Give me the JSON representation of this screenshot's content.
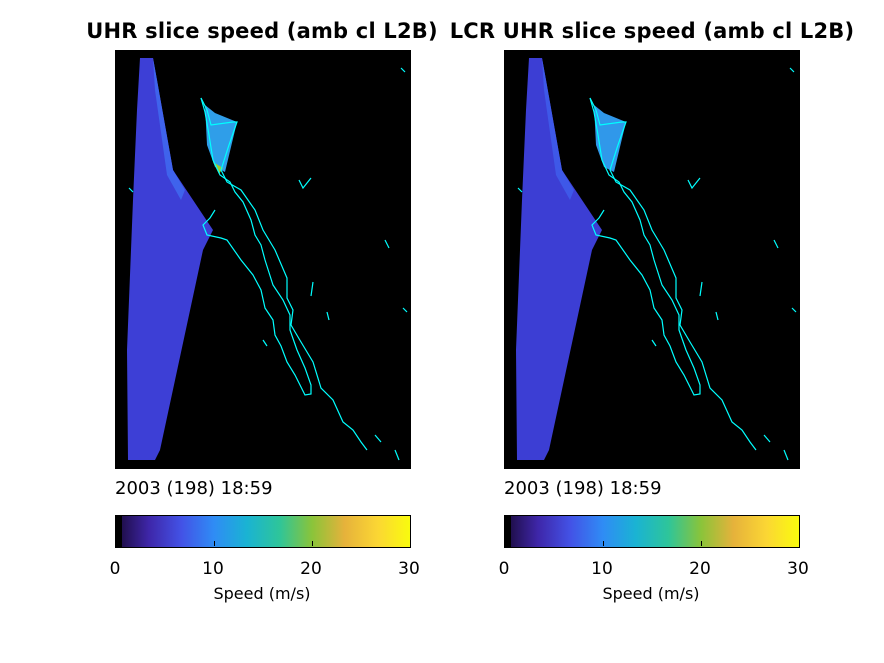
{
  "panels": [
    {
      "title": "UHR slice speed (amb cl L2B)",
      "timestamp": "2003 (198) 18:59",
      "colorbar_label": "Speed (m/s)",
      "ticks": [
        "0",
        "10",
        "20",
        "30"
      ]
    },
    {
      "title": "LCR UHR slice speed (amb cl L2B)",
      "timestamp": "2003 (198) 18:59",
      "colorbar_label": "Speed (m/s)",
      "ticks": [
        "0",
        "10",
        "20",
        "30"
      ]
    }
  ],
  "colors": {
    "background": "#000000",
    "coastline": "#00ffff",
    "swath": "#3d3fd6",
    "colormap": [
      "#1a0a3a",
      "#3e26a8",
      "#4352e6",
      "#2f8cf5",
      "#1ab3d3",
      "#2ec59a",
      "#8ac43a",
      "#e6b23b",
      "#fbd634",
      "#f9fb0e"
    ]
  },
  "chart_data": [
    {
      "type": "heatmap",
      "title": "UHR slice speed (amb cl L2B)",
      "colorbar": {
        "label": "Speed (m/s)",
        "range": [
          0,
          30
        ],
        "ticks": [
          0,
          10,
          20,
          30
        ]
      },
      "annotation": "2003 (198) 18:59",
      "dominant_speed_ms": 4,
      "gulf_region_speed_ms": 8
    },
    {
      "type": "heatmap",
      "title": "LCR UHR slice speed (amb cl L2B)",
      "colorbar": {
        "label": "Speed (m/s)",
        "range": [
          0,
          30
        ],
        "ticks": [
          0,
          10,
          20,
          30
        ]
      },
      "annotation": "2003 (198) 18:59",
      "dominant_speed_ms": 4,
      "gulf_region_speed_ms": 9
    }
  ]
}
